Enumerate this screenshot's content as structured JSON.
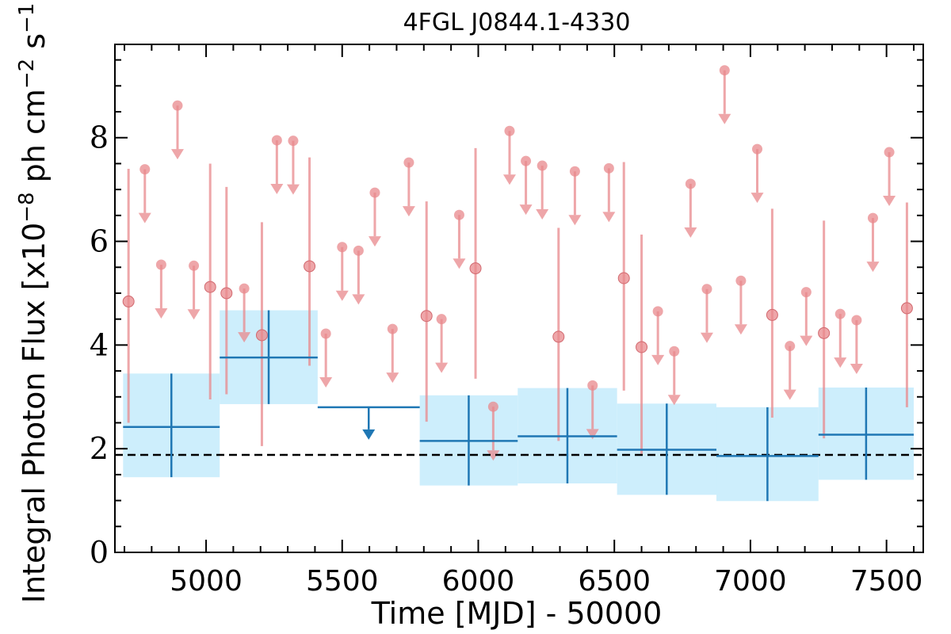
{
  "chart_data": {
    "type": "scatter",
    "title": "4FGL J0844.1-4330",
    "xlabel": "Time [MJD] - 50000",
    "ylabel": "Integral Photon Flux [x10",
    "ylabel_exp1": "−8",
    "ylabel_mid": " ph cm",
    "ylabel_exp2": "−2",
    "ylabel_mid2": " s",
    "ylabel_exp3": "−1",
    "ylabel_end": "]",
    "xlim": [
      4665,
      7635
    ],
    "ylim": [
      0,
      9.8
    ],
    "xticks": [
      5000,
      5500,
      6000,
      6500,
      7000,
      7500
    ],
    "xtick_labels": [
      "5000",
      "5500",
      "6000",
      "6500",
      "7000",
      "7500"
    ],
    "yticks": [
      0,
      2,
      4,
      6,
      8
    ],
    "ytick_labels": [
      "0",
      "2",
      "4",
      "6",
      "8"
    ],
    "reference_line": {
      "y": 1.88,
      "style": "dashed",
      "color": "#000000"
    },
    "colors": {
      "wide_bins": "#1f77b4",
      "wide_bins_band": "#cdeefc",
      "short_bins": "#e8888c"
    },
    "series": [
      {
        "kind": "wide_bins",
        "points": [
          {
            "x0": 4695,
            "x1": 5050,
            "y": 2.42,
            "ylo": 1.45,
            "yhi": 3.45
          },
          {
            "x0": 5050,
            "x1": 5410,
            "y": 3.76,
            "ylo": 2.86,
            "yhi": 4.67
          },
          {
            "x0": 5410,
            "x1": 5785,
            "y": 2.8,
            "upper_limit": true
          },
          {
            "x0": 5785,
            "x1": 6145,
            "y": 2.15,
            "ylo": 1.29,
            "yhi": 3.03
          },
          {
            "x0": 6145,
            "x1": 6510,
            "y": 2.24,
            "ylo": 1.33,
            "yhi": 3.17
          },
          {
            "x0": 6510,
            "x1": 6875,
            "y": 1.98,
            "ylo": 1.11,
            "yhi": 2.87
          },
          {
            "x0": 6875,
            "x1": 7250,
            "y": 1.86,
            "ylo": 0.99,
            "yhi": 2.8
          },
          {
            "x0": 7250,
            "x1": 7600,
            "y": 2.27,
            "ylo": 1.4,
            "yhi": 3.18
          }
        ]
      },
      {
        "kind": "short_bins",
        "detections": [
          {
            "x": 4715,
            "y": 4.84,
            "ylo": 2.5,
            "yhi": 7.4
          },
          {
            "x": 5015,
            "y": 5.12,
            "ylo": 2.95,
            "yhi": 7.5
          },
          {
            "x": 5075,
            "y": 5.0,
            "ylo": 3.05,
            "yhi": 7.05
          },
          {
            "x": 5205,
            "y": 4.19,
            "ylo": 2.05,
            "yhi": 6.37
          },
          {
            "x": 5380,
            "y": 5.52,
            "ylo": 3.6,
            "yhi": 7.62
          },
          {
            "x": 5810,
            "y": 4.56,
            "ylo": 2.52,
            "yhi": 6.77
          },
          {
            "x": 5990,
            "y": 5.48,
            "ylo": 3.35,
            "yhi": 7.8
          },
          {
            "x": 6295,
            "y": 4.16,
            "ylo": 2.15,
            "yhi": 6.26
          },
          {
            "x": 6535,
            "y": 5.29,
            "ylo": 3.12,
            "yhi": 7.53
          },
          {
            "x": 6600,
            "y": 3.96,
            "ylo": 1.9,
            "yhi": 6.13
          },
          {
            "x": 7080,
            "y": 4.58,
            "ylo": 2.6,
            "yhi": 6.63
          },
          {
            "x": 7270,
            "y": 4.23,
            "ylo": 2.2,
            "yhi": 6.4
          },
          {
            "x": 7575,
            "y": 4.71,
            "ylo": 2.8,
            "yhi": 6.75
          }
        ],
        "upper_limits": [
          {
            "x": 4775,
            "y": 7.39
          },
          {
            "x": 4835,
            "y": 5.55
          },
          {
            "x": 4895,
            "y": 8.62
          },
          {
            "x": 4955,
            "y": 5.53
          },
          {
            "x": 5140,
            "y": 5.09
          },
          {
            "x": 5260,
            "y": 7.95
          },
          {
            "x": 5320,
            "y": 7.94
          },
          {
            "x": 5440,
            "y": 4.22
          },
          {
            "x": 5500,
            "y": 5.89
          },
          {
            "x": 5560,
            "y": 5.82
          },
          {
            "x": 5620,
            "y": 6.94
          },
          {
            "x": 5685,
            "y": 4.31
          },
          {
            "x": 5745,
            "y": 7.52
          },
          {
            "x": 5865,
            "y": 4.5
          },
          {
            "x": 5930,
            "y": 6.51
          },
          {
            "x": 6055,
            "y": 2.81
          },
          {
            "x": 6115,
            "y": 8.13
          },
          {
            "x": 6175,
            "y": 7.55
          },
          {
            "x": 6235,
            "y": 7.46
          },
          {
            "x": 6355,
            "y": 7.35
          },
          {
            "x": 6420,
            "y": 3.22
          },
          {
            "x": 6480,
            "y": 7.41
          },
          {
            "x": 6660,
            "y": 4.65
          },
          {
            "x": 6720,
            "y": 3.88
          },
          {
            "x": 6780,
            "y": 7.11
          },
          {
            "x": 6840,
            "y": 5.08
          },
          {
            "x": 6905,
            "y": 9.3
          },
          {
            "x": 6965,
            "y": 5.24
          },
          {
            "x": 7025,
            "y": 7.78
          },
          {
            "x": 7145,
            "y": 3.98
          },
          {
            "x": 7205,
            "y": 5.02
          },
          {
            "x": 7330,
            "y": 4.6
          },
          {
            "x": 7390,
            "y": 4.48
          },
          {
            "x": 7450,
            "y": 6.45
          },
          {
            "x": 7510,
            "y": 7.72
          }
        ]
      }
    ]
  }
}
